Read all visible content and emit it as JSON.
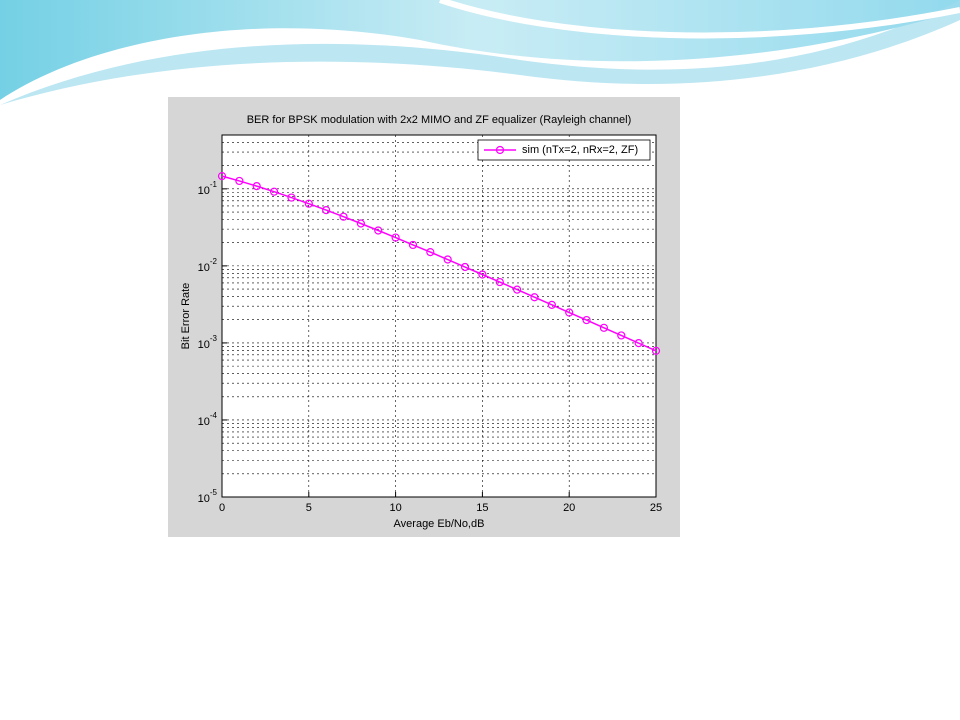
{
  "chart_data": {
    "type": "line",
    "title": "BER for BPSK modulation with 2x2 MIMO and ZF equalizer (Rayleigh channel)",
    "x_label": "Average Eb/No,dB",
    "y_label": "Bit Error Rate",
    "x": [
      0,
      1,
      2,
      3,
      4,
      5,
      6,
      7,
      8,
      9,
      10,
      11,
      12,
      13,
      14,
      15,
      16,
      17,
      18,
      19,
      20,
      21,
      22,
      23,
      24,
      25
    ],
    "series": [
      {
        "name": "sim (nTx=2, nRx=2, ZF)",
        "color": "#ff00ff",
        "values": [
          0.1464,
          0.1267,
          0.1085,
          0.0919,
          0.0771,
          0.0642,
          0.053,
          0.0435,
          0.0355,
          0.0288,
          0.0233,
          0.0187,
          0.0151,
          0.0121,
          0.00967,
          0.00773,
          0.00617,
          0.00492,
          0.00392,
          0.00312,
          0.00248,
          0.00198,
          0.00157,
          0.00125,
          0.000994,
          0.00079
        ]
      }
    ],
    "xlim": [
      0,
      25
    ],
    "xticks": [
      0,
      5,
      10,
      15,
      20,
      25
    ],
    "ylim": [
      1e-05,
      0.5
    ],
    "yticks": [
      {
        "value": 1e-05,
        "label": "10^-5"
      },
      {
        "value": 0.0001,
        "label": "10^-4"
      },
      {
        "value": 0.001,
        "label": "10^-3"
      },
      {
        "value": 0.01,
        "label": "10^-2"
      },
      {
        "value": 0.1,
        "label": "10^-1"
      }
    ],
    "y_scale": "log",
    "grid": true,
    "minor_grid": true,
    "legend": "upper right"
  }
}
